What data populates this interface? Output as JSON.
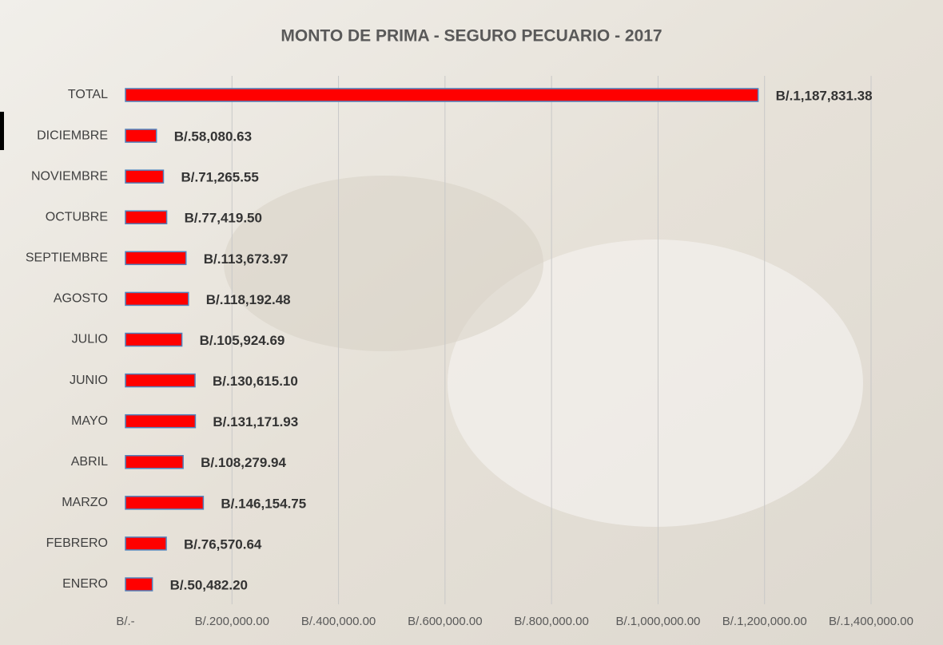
{
  "chart_data": {
    "type": "bar",
    "orientation": "horizontal",
    "title": "MONTO DE PRIMA - SEGURO PECUARIO - 2017",
    "categories": [
      "TOTAL",
      "DICIEMBRE",
      "NOVIEMBRE",
      "OCTUBRE",
      "SEPTIEMBRE",
      "AGOSTO",
      "JULIO",
      "JUNIO",
      "MAYO",
      "ABRIL",
      "MARZO",
      "FEBRERO",
      "ENERO"
    ],
    "values": [
      1187831.38,
      58080.63,
      71265.55,
      77419.5,
      113673.97,
      118192.48,
      105924.69,
      130615.1,
      131171.93,
      108279.94,
      146154.75,
      76570.64,
      50482.2
    ],
    "value_labels": [
      "B/.1,187,831.38",
      "B/.58,080.63",
      "B/.71,265.55",
      "B/.77,419.50",
      "B/.113,673.97",
      "B/.118,192.48",
      "B/.105,924.69",
      "B/.130,615.10",
      "B/.131,171.93",
      "B/.108,279.94",
      "B/.146,154.75",
      "B/.76,570.64",
      "B/.50,482.20"
    ],
    "color": "#ff0000",
    "xlim": [
      0,
      1400000
    ],
    "xticks": [
      {
        "value": 0,
        "label": "B/.-"
      },
      {
        "value": 200000,
        "label": "B/.200,000.00"
      },
      {
        "value": 400000,
        "label": "B/.400,000.00"
      },
      {
        "value": 600000,
        "label": "B/.600,000.00"
      },
      {
        "value": 800000,
        "label": "B/.800,000.00"
      },
      {
        "value": 1000000,
        "label": "B/.1,000,000.00"
      },
      {
        "value": 1200000,
        "label": "B/.1,200,000.00"
      },
      {
        "value": 1400000,
        "label": "B/.1,400,000.00"
      }
    ],
    "grid": true
  }
}
